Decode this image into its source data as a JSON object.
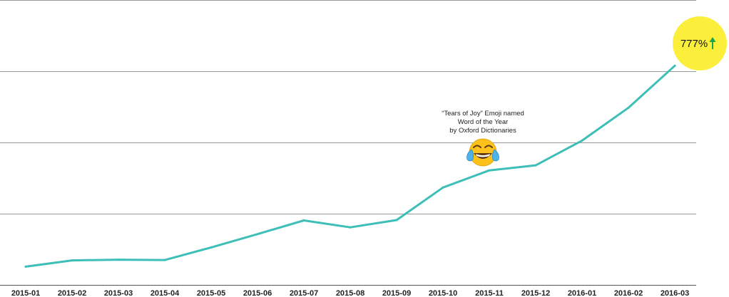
{
  "chart_data": {
    "type": "line",
    "title": "",
    "xlabel": "",
    "ylabel": "",
    "categories": [
      "2015-01",
      "2015-02",
      "2015-03",
      "2015-04",
      "2015-05",
      "2015-06",
      "2015-07",
      "2015-08",
      "2015-09",
      "2015-10",
      "2015-11",
      "2015-12",
      "2016-01",
      "2016-02",
      "2016-03"
    ],
    "series": [
      {
        "values": [
          100,
          134,
          138,
          136,
          205,
          278,
          353,
          315,
          355,
          533,
          627,
          655,
          790,
          970,
          1200
        ]
      }
    ],
    "ylim": [
      0,
      1560
    ],
    "grid": true,
    "line_color": "#3dbfb8",
    "annotation": {
      "lines": [
        "“Tears of Joy” Emoji named",
        "Word of the Year",
        "by Oxford Dictionaries"
      ],
      "category": "2015-11",
      "icon": "face-with-tears-of-joy-emoji"
    },
    "badge": {
      "value_text": "777%",
      "arrow": "↑",
      "arrow_icon": "arrow-up-icon",
      "color": "#fbef3c",
      "arrow_color": "#1fa34a"
    }
  }
}
